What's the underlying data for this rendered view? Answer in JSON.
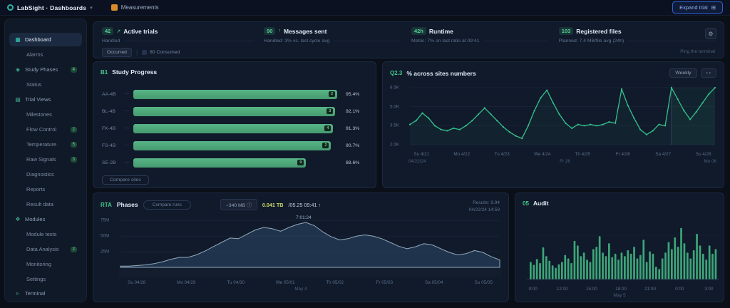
{
  "topbar": {
    "logo": {
      "text": "LabSight · Dashboards",
      "caret": "▾"
    },
    "workspace": {
      "text": "Measurements"
    },
    "expand_button": {
      "label": "Expand trial",
      "icon_glyph": "⊞"
    }
  },
  "sidebar": {
    "items": [
      {
        "label": "Dashboard",
        "icon": "dashboard-icon",
        "glyph": "▦",
        "active": true
      },
      {
        "label": "Alarms",
        "child": true
      },
      {
        "label": "Study Phases",
        "icon": "study-icon",
        "glyph": "◈",
        "badge": "4"
      },
      {
        "label": "Status",
        "child": true
      },
      {
        "label": "Trial Views",
        "icon": "views-icon",
        "glyph": "▤"
      },
      {
        "label": "Milestones",
        "child": true
      },
      {
        "label": "Flow Control",
        "child": true,
        "badge": "2"
      },
      {
        "label": "Temperature",
        "child": true,
        "badge": "5"
      },
      {
        "label": "Raw Signals",
        "child": true,
        "badge": "3"
      },
      {
        "label": "Diagnostics",
        "child": true
      },
      {
        "label": "Reports",
        "child": true
      },
      {
        "label": "Result data",
        "child": true
      },
      {
        "label": "Modules",
        "icon": "modules-icon",
        "glyph": "❖"
      },
      {
        "label": "Module tests",
        "child": true
      },
      {
        "label": "Data Analysis",
        "child": true,
        "badge": "2"
      },
      {
        "label": "Monitoring",
        "child": true
      },
      {
        "label": "Settings",
        "child": true
      },
      {
        "label": "Terminal",
        "icon": "terminal-icon",
        "glyph": "▹",
        "bottom": true
      }
    ]
  },
  "stats": {
    "cards": [
      {
        "badge": "42",
        "delta": "↗",
        "title": "Active trials",
        "sub": "Handled",
        "chips": [
          "Occurred",
          "80 Consumed"
        ]
      },
      {
        "badge": "90",
        "delta": "↑",
        "title": "Messages sent",
        "sub": "Handled: 3% vs. last cycle avg"
      },
      {
        "badge": "42h",
        "delta": "",
        "title": "Runtime",
        "sub": "Metric: 7% on last ratio at 09:41"
      },
      {
        "badge": "103",
        "delta": "",
        "title": "Registered files",
        "sub": "Planned: 7.4 MB/file avg (24h)"
      }
    ],
    "gear_icon": "⚙",
    "footer_note": "Ping the terminal"
  },
  "chart_data": [
    {
      "id": "study_progress",
      "type": "bar",
      "orientation": "horizontal",
      "badge": "B1",
      "title": "Study Progress",
      "unit": "%",
      "categories": [
        "AA-4B",
        "BL-4B",
        "FK-4B",
        "FS-4B",
        "SE-2B"
      ],
      "values": [
        95.4,
        92.1,
        91.3,
        90.7,
        88.6
      ],
      "bar_pct": [
        98,
        97,
        96,
        95,
        83
      ],
      "end_badges": [
        "2",
        "3",
        "4",
        "2",
        "9"
      ],
      "value_labels": [
        "95.4%",
        "92.1%",
        "91.3%",
        "90.7%",
        "88.6%"
      ],
      "footer_button": "Compare sites"
    },
    {
      "id": "sites_trend",
      "type": "line",
      "badge": "Q2.3",
      "title": "% across sites numbers",
      "controls": {
        "range_button": "Weekly",
        "prev_icon": "‹",
        "next_icon": "›"
      },
      "y_labels": [
        "6.5K",
        "5.0K",
        "3.5K",
        "2.0K"
      ],
      "ylim": [
        2.0,
        6.5
      ],
      "x_labels": [
        "Su 4/21",
        "Mo 4/22",
        "Tu 4/23",
        "We 4/24",
        "Th 4/25",
        "Fr 4/26",
        "Sa 4/27",
        "Su 4/28"
      ],
      "sub_axis": {
        "left": "04/22/24",
        "center": "Fr 26",
        "right": "Mo 06"
      },
      "values": [
        3.6,
        3.9,
        4.5,
        4.1,
        3.5,
        3.2,
        3.1,
        3.3,
        3.2,
        3.5,
        3.9,
        4.4,
        4.9,
        4.4,
        3.9,
        3.4,
        3.0,
        2.7,
        2.5,
        3.5,
        4.7,
        5.7,
        6.3,
        5.3,
        4.4,
        3.7,
        3.3,
        3.6,
        3.5,
        3.6,
        3.5,
        3.6,
        3.8,
        3.7,
        6.4,
        5.1,
        4.1,
        3.2,
        2.8,
        3.1,
        3.6,
        3.5,
        6.5,
        5.6,
        4.7,
        4.0,
        4.6,
        5.3,
        6.0,
        6.5
      ],
      "crosshair_index": 42,
      "line_color": "#35c28c",
      "grid": true,
      "legend": "none"
    },
    {
      "id": "phases",
      "type": "area",
      "tag": "RTA",
      "title": "Phases",
      "pill_button": "Compare runs",
      "volume_chip": "~340 MB ⓘ",
      "volume_value": "0.041 TB",
      "volume_detail": "/05.25 09:41 ↑",
      "meta_line1": "Results: 9.94",
      "meta_line2": "04/22/24 14:59",
      "annotation": {
        "text": "7:01:24",
        "index": 22
      },
      "y_labels": [
        "75M",
        "50M",
        "25M"
      ],
      "ylim": [
        0,
        80
      ],
      "x_labels": [
        "Su 04/28",
        "Mo 04/29",
        "Tu 04/30",
        "We 05/01",
        "Th 05/02",
        "Fr 05/03",
        "Sa 05/04",
        "Su 05/05"
      ],
      "axis_center_label": "May 4",
      "values": [
        2,
        2,
        3,
        4,
        6,
        9,
        13,
        16,
        16,
        20,
        26,
        33,
        40,
        47,
        46,
        53,
        60,
        64,
        62,
        58,
        64,
        69,
        72,
        67,
        57,
        49,
        44,
        46,
        50,
        52,
        50,
        46,
        40,
        34,
        30,
        33,
        38,
        36,
        30,
        24,
        20,
        22,
        27,
        24,
        17,
        12
      ],
      "fill_color": "#3e648a",
      "stroke_color": "#93aabd",
      "grid": true,
      "legend": "none"
    },
    {
      "id": "audit",
      "type": "bar",
      "badge": "05",
      "title": "Audit",
      "x_labels": [
        "9:00",
        "12:00",
        "15:00",
        "18:00",
        "21:00",
        "0:00",
        "3:00"
      ],
      "axis_center_label": "May 5",
      "ylim": [
        0,
        100
      ],
      "values": [
        30,
        25,
        35,
        28,
        55,
        40,
        32,
        24,
        20,
        26,
        30,
        42,
        36,
        28,
        66,
        58,
        40,
        46,
        34,
        30,
        52,
        56,
        74,
        46,
        40,
        62,
        38,
        44,
        34,
        46,
        40,
        50,
        44,
        56,
        36,
        42,
        68,
        30,
        48,
        44,
        22,
        18,
        36,
        46,
        64,
        52,
        72,
        56,
        88,
        62,
        46,
        36,
        50,
        78,
        58,
        44,
        34,
        58,
        44,
        52
      ],
      "bar_color": "#3da578",
      "grid": true,
      "legend": "none"
    }
  ]
}
